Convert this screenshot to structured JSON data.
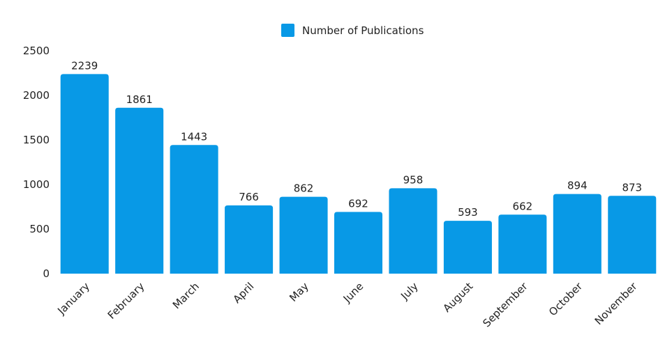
{
  "chart_data": {
    "type": "bar",
    "categories": [
      "January",
      "February",
      "March",
      "April",
      "May",
      "June",
      "July",
      "August",
      "September",
      "October",
      "November"
    ],
    "series": [
      {
        "name": "Number of Publications",
        "values": [
          2239,
          1861,
          1443,
          766,
          862,
          692,
          958,
          593,
          662,
          894,
          873
        ],
        "color": "#0899e6"
      }
    ],
    "ylim": [
      0,
      2500
    ],
    "yticks": [
      0,
      500,
      1000,
      1500,
      2000,
      2500
    ],
    "grid": false,
    "legend_position": "top-center",
    "data_labels": true
  }
}
